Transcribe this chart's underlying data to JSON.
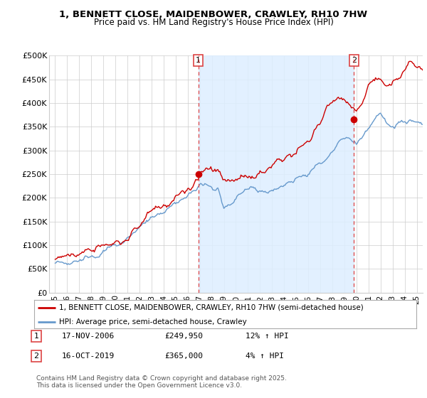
{
  "title": "1, BENNETT CLOSE, MAIDENBOWER, CRAWLEY, RH10 7HW",
  "subtitle": "Price paid vs. HM Land Registry's House Price Index (HPI)",
  "ylabel_ticks": [
    "£0",
    "£50K",
    "£100K",
    "£150K",
    "£200K",
    "£250K",
    "£300K",
    "£350K",
    "£400K",
    "£450K",
    "£500K"
  ],
  "ytick_values": [
    0,
    50000,
    100000,
    150000,
    200000,
    250000,
    300000,
    350000,
    400000,
    450000,
    500000
  ],
  "ylim": [
    0,
    500000
  ],
  "xlim_start": 1994.5,
  "xlim_end": 2025.5,
  "xtick_years": [
    1995,
    1996,
    1997,
    1998,
    1999,
    2000,
    2001,
    2002,
    2003,
    2004,
    2005,
    2006,
    2007,
    2008,
    2009,
    2010,
    2011,
    2012,
    2013,
    2014,
    2015,
    2016,
    2017,
    2018,
    2019,
    2020,
    2021,
    2022,
    2023,
    2024,
    2025
  ],
  "sale1_x": 2006.88,
  "sale1_y": 249950,
  "sale1_label": "1",
  "sale1_date": "17-NOV-2006",
  "sale1_price": "£249,950",
  "sale1_hpi": "12% ↑ HPI",
  "sale2_x": 2019.79,
  "sale2_y": 365000,
  "sale2_label": "2",
  "sale2_date": "16-OCT-2019",
  "sale2_price": "£365,000",
  "sale2_hpi": "4% ↑ HPI",
  "property_color": "#cc0000",
  "hpi_color": "#6699cc",
  "hpi_fill_color": "#ddeeff",
  "legend_property": "1, BENNETT CLOSE, MAIDENBOWER, CRAWLEY, RH10 7HW (semi-detached house)",
  "legend_hpi": "HPI: Average price, semi-detached house, Crawley",
  "footnote": "Contains HM Land Registry data © Crown copyright and database right 2025.\nThis data is licensed under the Open Government Licence v3.0.",
  "grid_color": "#cccccc",
  "sale_vline_color": "#dd4444",
  "shade_color": "#ddeeff"
}
